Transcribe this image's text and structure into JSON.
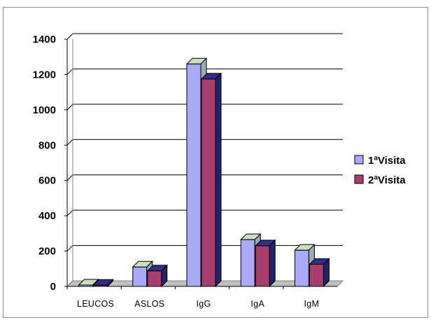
{
  "chart_data": {
    "type": "bar",
    "categories": [
      "LEUCOS",
      "ASLOS",
      "IgG",
      "IgA",
      "IgM"
    ],
    "series": [
      {
        "name": "1ªVisita",
        "values": [
          8,
          110,
          1260,
          265,
          205
        ],
        "color": "#a9a9f5",
        "top_color": "#c8e0c0",
        "side_color": "#9aaab0"
      },
      {
        "name": "2ªVisita",
        "values": [
          7,
          88,
          1175,
          230,
          125
        ],
        "color": "#a83e6d",
        "top_color": "#2f2f88",
        "side_color": "#22226b"
      }
    ],
    "yticks": [
      0,
      200,
      400,
      600,
      800,
      1000,
      1200,
      1400
    ],
    "ylim": [
      0,
      1400
    ],
    "grid": true,
    "legend_position": "right",
    "title": "",
    "xlabel": "",
    "ylabel": ""
  }
}
